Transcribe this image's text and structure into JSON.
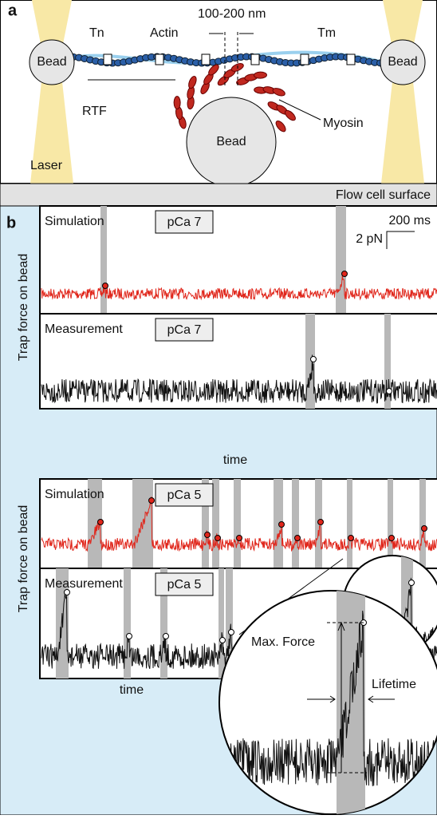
{
  "panel_a": {
    "label": "a",
    "spacing_label": "100-200 nm",
    "tn": "Tn",
    "actin": "Actin",
    "tm": "Tm",
    "rtf": "RTF",
    "myosin": "Myosin",
    "laser": "Laser",
    "beads": [
      "Bead",
      "Bead",
      "Bead"
    ],
    "surface": "Flow cell surface"
  },
  "panel_b": {
    "label": "b",
    "y_label_top": "Trap force on bead",
    "y_label_bottom": "Trap force on bead",
    "scale_time": "200 ms",
    "scale_force": "2 pN",
    "traces": [
      {
        "kind": "Simulation",
        "condition": "pCa 7"
      },
      {
        "kind": "Measurement",
        "condition": "pCa 7"
      },
      {
        "kind": "Simulation",
        "condition": "pCa 5"
      },
      {
        "kind": "Measurement",
        "condition": "pCa 5"
      }
    ],
    "time_labels": [
      "time",
      "time"
    ],
    "inset": {
      "max_force": "Max. Force",
      "lifetime": "Lifetime"
    }
  }
}
